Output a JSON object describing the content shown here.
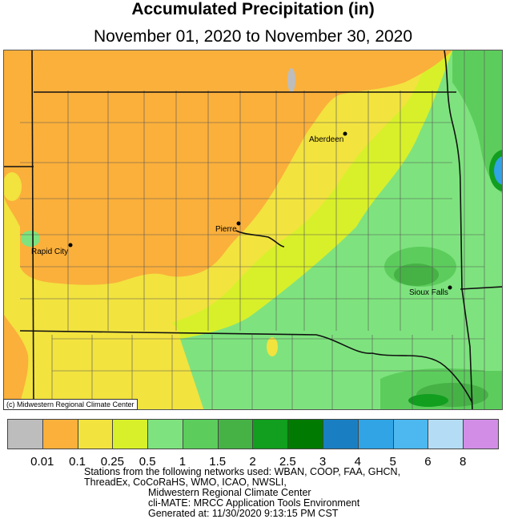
{
  "title": "Accumulated Precipitation (in)",
  "subtitle": "November 01, 2020 to November 30, 2020",
  "copyright": "(c) Midwestern Regional Climate Center",
  "cities": [
    {
      "name": "Aberdeen"
    },
    {
      "name": "Pierre"
    },
    {
      "name": "Rapid City"
    },
    {
      "name": "Sioux Falls"
    }
  ],
  "legend": {
    "colors": [
      "#bdbdbd",
      "#fbb03b",
      "#f2e33f",
      "#d8f02a",
      "#7ee37e",
      "#5ccd5c",
      "#46b246",
      "#129e1f",
      "#007a00",
      "#1a7fc2",
      "#30a4e4",
      "#4cb8ef",
      "#b5dcf5",
      "#d28ee6"
    ],
    "tick_labels": [
      "0.01",
      "0.1",
      "0.25",
      "0.5",
      "1",
      "1.5",
      "2",
      "2.5",
      "3",
      "4",
      "5",
      "6",
      "8"
    ]
  },
  "credits": [
    "Stations from the following networks used: WBAN, COOP, FAA, GHCN,",
    "ThreadEx, CoCoRaHS, WMO, ICAO, NWSLI,",
    "Midwestern Regional Climate Center",
    "cli-MATE: MRCC Application Tools Environment",
    "Generated at: 11/30/2020 9:13:15 PM CST"
  ]
}
